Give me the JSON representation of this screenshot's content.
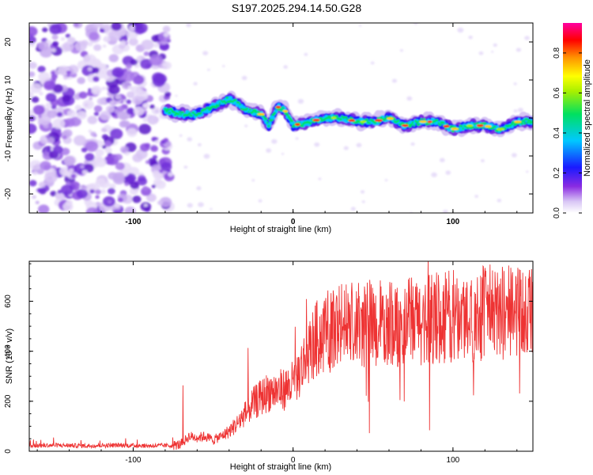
{
  "title": "S197.2025.294.14.50.G28",
  "chart_data": [
    {
      "type": "heatmap",
      "title": "S197.2025.294.14.50.G28",
      "xlabel": "Height of straight line (km)",
      "ylabel": "Frequency (Hz)",
      "xlim": [
        -165,
        150
      ],
      "ylim": [
        -25,
        25
      ],
      "xticks": [
        -100,
        0,
        100
      ],
      "yticks": [
        -20,
        -10,
        0,
        10,
        20
      ],
      "colorbar": {
        "label": "Normalized spectral amplitude",
        "range": [
          0,
          0.95
        ],
        "ticks": [
          0.0,
          0.2,
          0.4,
          0.6,
          0.8
        ]
      },
      "signal_track": {
        "x": [
          -80,
          -70,
          -60,
          -50,
          -40,
          -35,
          -30,
          -20,
          -15,
          -10,
          -5,
          0,
          10,
          20,
          30,
          40,
          50,
          60,
          70,
          80,
          90,
          100,
          110,
          120,
          130,
          140,
          150
        ],
        "freq": [
          2,
          1,
          1,
          3,
          5,
          4,
          2,
          1,
          -2,
          3,
          2,
          -2,
          -1,
          0,
          0,
          -1,
          -1,
          0,
          -2,
          -1,
          -1,
          -3,
          -2,
          -2,
          -3,
          -1,
          -1
        ]
      },
      "noise_region": [
        -165,
        -80
      ]
    },
    {
      "type": "line",
      "xlabel": "Height of straight line (km)",
      "ylabel": "SNR (10 * v/v)",
      "xlim": [
        -165,
        150
      ],
      "ylim": [
        0,
        760
      ],
      "xticks": [
        -100,
        0,
        100
      ],
      "yticks": [
        0,
        200,
        400,
        600
      ],
      "series": [
        {
          "name": "SNR",
          "color": "#ee3333",
          "x": [
            -165,
            -150,
            -130,
            -110,
            -90,
            -75,
            -70,
            -65,
            -60,
            -55,
            -50,
            -45,
            -40,
            -35,
            -30,
            -25,
            -20,
            -15,
            -10,
            -5,
            0,
            5,
            10,
            15,
            20,
            25,
            30,
            40,
            50,
            60,
            70,
            80,
            90,
            100,
            110,
            120,
            130,
            140,
            150
          ],
          "values": [
            22,
            24,
            22,
            24,
            22,
            23,
            28,
            60,
            55,
            60,
            45,
            60,
            80,
            110,
            150,
            190,
            215,
            240,
            240,
            250,
            270,
            330,
            400,
            450,
            470,
            490,
            500,
            500,
            510,
            505,
            515,
            520,
            530,
            540,
            540,
            560,
            550,
            560,
            560
          ],
          "spread_hint": "noisy trace with deep dips to ~60"
        }
      ]
    }
  ]
}
